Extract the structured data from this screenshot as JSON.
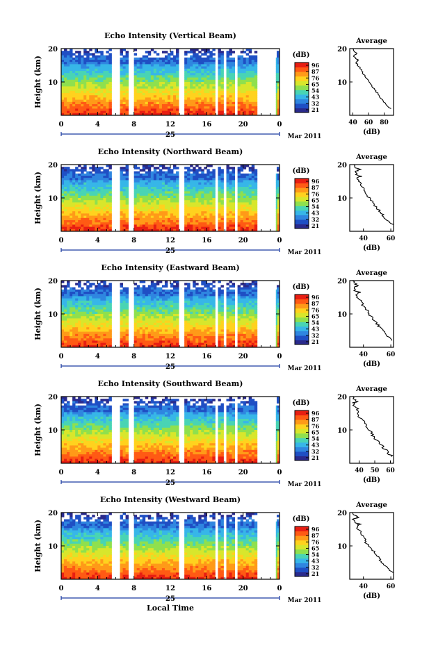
{
  "colorbar": {
    "unit": "(dB)",
    "ticks": [
      "96",
      "87",
      "76",
      "65",
      "54",
      "43",
      "32",
      "21"
    ],
    "colors": [
      "#2a2a8c",
      "#1f4fc4",
      "#2f86e0",
      "#37b6e8",
      "#49d4b4",
      "#8fe04e",
      "#d8e62c",
      "#ffd21e",
      "#ff9a18",
      "#ff5a14",
      "#e81e12"
    ]
  },
  "xaxis": {
    "ticks": [
      "0",
      "4",
      "8",
      "12",
      "16",
      "20",
      "0"
    ],
    "date_label": "25",
    "month_label": "Mar 2011",
    "xlabel": "Local Time"
  },
  "ylabel": "Height (km)",
  "chart_data": [
    {
      "type": "heatmap",
      "title": "Echo Intensity (Vertical Beam)",
      "y_ticks": [
        "20",
        "10"
      ],
      "avg_title": "Average",
      "avg_x_ticks": [
        "40",
        "60",
        "80"
      ],
      "avg_xlabel": "(dB)",
      "avg_xlim": [
        36,
        92
      ],
      "gaps_hours": [
        [
          5.6,
          6.6
        ],
        [
          7.3,
          7.9
        ],
        [
          12.9,
          13.5
        ],
        [
          16.8,
          17.1
        ],
        [
          17.9,
          18.2
        ],
        [
          19.1,
          19.3
        ],
        [
          21.6,
          22.3
        ],
        [
          23.4,
          23.5
        ]
      ],
      "average_profile": [
        [
          88,
          2
        ],
        [
          84,
          3
        ],
        [
          80,
          4
        ],
        [
          76,
          5
        ],
        [
          74,
          6
        ],
        [
          70,
          7
        ],
        [
          67,
          8
        ],
        [
          64,
          9
        ],
        [
          61,
          10
        ],
        [
          57,
          11
        ],
        [
          55,
          12
        ],
        [
          52,
          13
        ],
        [
          50,
          14
        ],
        [
          46,
          15
        ],
        [
          44,
          16
        ],
        [
          47,
          16.5
        ],
        [
          43,
          17
        ],
        [
          41,
          18
        ],
        [
          45,
          18.5
        ],
        [
          42,
          19
        ],
        [
          40,
          20
        ]
      ]
    },
    {
      "type": "heatmap",
      "title": "Echo Intensity (Northward Beam)",
      "y_ticks": [
        "20",
        "10"
      ],
      "avg_title": "Average",
      "avg_x_ticks": [
        "40",
        "60"
      ],
      "avg_xlabel": "(dB)",
      "avg_xlim": [
        30,
        62
      ],
      "gaps_hours": [
        [
          5.6,
          6.6
        ],
        [
          7.3,
          7.9
        ],
        [
          12.9,
          13.5
        ],
        [
          16.8,
          17.1
        ],
        [
          17.9,
          18.2
        ],
        [
          19.1,
          19.3
        ],
        [
          21.6,
          22.3
        ],
        [
          23.4,
          23.5
        ]
      ],
      "average_profile": [
        [
          61,
          2
        ],
        [
          58,
          3
        ],
        [
          56,
          4
        ],
        [
          54,
          5
        ],
        [
          52,
          6
        ],
        [
          50,
          7
        ],
        [
          48,
          8
        ],
        [
          46,
          9
        ],
        [
          44,
          10
        ],
        [
          43,
          11
        ],
        [
          41,
          12
        ],
        [
          40,
          13
        ],
        [
          38,
          14
        ],
        [
          37,
          15
        ],
        [
          36,
          16
        ],
        [
          38,
          16.5
        ],
        [
          35,
          17
        ],
        [
          34,
          18
        ],
        [
          37,
          18.5
        ],
        [
          35,
          19
        ],
        [
          33,
          20
        ]
      ]
    },
    {
      "type": "heatmap",
      "title": "Echo Intensity (Eastward Beam)",
      "y_ticks": [
        "20",
        "10"
      ],
      "avg_title": "Average",
      "avg_x_ticks": [
        "40",
        "60"
      ],
      "avg_xlabel": "(dB)",
      "avg_xlim": [
        30,
        62
      ],
      "gaps_hours": [
        [
          5.6,
          6.6
        ],
        [
          7.3,
          7.9
        ],
        [
          12.9,
          13.5
        ],
        [
          16.8,
          17.1
        ],
        [
          17.9,
          18.2
        ],
        [
          19.1,
          19.3
        ],
        [
          21.6,
          22.3
        ],
        [
          23.4,
          23.5
        ]
      ],
      "average_profile": [
        [
          61,
          2
        ],
        [
          58,
          3
        ],
        [
          56,
          4
        ],
        [
          54,
          5
        ],
        [
          52,
          6
        ],
        [
          50,
          7
        ],
        [
          48,
          8
        ],
        [
          46,
          9
        ],
        [
          44,
          10
        ],
        [
          43,
          11
        ],
        [
          41,
          12
        ],
        [
          39,
          13
        ],
        [
          38,
          14
        ],
        [
          36,
          15
        ],
        [
          35,
          16
        ],
        [
          37,
          16.5
        ],
        [
          34,
          17
        ],
        [
          33,
          18
        ],
        [
          36,
          18.5
        ],
        [
          34,
          19
        ],
        [
          32,
          20
        ]
      ]
    },
    {
      "type": "heatmap",
      "title": "Echo Intensity (Southward Beam)",
      "y_ticks": [
        "20",
        "10"
      ],
      "avg_title": "Average",
      "avg_x_ticks": [
        "40",
        "50",
        "60"
      ],
      "avg_xlabel": "(dB)",
      "avg_xlim": [
        34,
        62
      ],
      "gaps_hours": [
        [
          5.6,
          6.6
        ],
        [
          7.3,
          7.9
        ],
        [
          12.9,
          13.5
        ],
        [
          16.8,
          17.1
        ],
        [
          17.9,
          18.2
        ],
        [
          19.1,
          19.3
        ],
        [
          21.6,
          22.3
        ],
        [
          23.4,
          23.5
        ]
      ],
      "average_profile": [
        [
          61,
          2
        ],
        [
          59,
          3
        ],
        [
          57,
          4
        ],
        [
          55,
          5
        ],
        [
          53,
          6
        ],
        [
          51,
          7
        ],
        [
          49,
          8
        ],
        [
          48,
          9
        ],
        [
          46,
          10
        ],
        [
          45,
          11
        ],
        [
          43,
          12
        ],
        [
          42,
          13
        ],
        [
          40,
          14
        ],
        [
          39,
          15
        ],
        [
          38,
          16
        ],
        [
          40,
          16.5
        ],
        [
          37,
          17
        ],
        [
          36,
          18
        ],
        [
          38,
          18.5
        ],
        [
          37,
          19
        ],
        [
          36,
          20
        ]
      ]
    },
    {
      "type": "heatmap",
      "title": "Echo Intensity (Westward Beam)",
      "y_ticks": [
        "20",
        "10"
      ],
      "avg_title": "Average",
      "avg_x_ticks": [
        "40",
        "60"
      ],
      "avg_xlabel": "(dB)",
      "avg_xlim": [
        30,
        62
      ],
      "gaps_hours": [
        [
          5.6,
          6.6
        ],
        [
          7.3,
          7.9
        ],
        [
          12.9,
          13.5
        ],
        [
          16.8,
          17.1
        ],
        [
          17.9,
          18.2
        ],
        [
          19.1,
          19.3
        ],
        [
          21.6,
          22.3
        ],
        [
          23.4,
          23.5
        ]
      ],
      "average_profile": [
        [
          61,
          2
        ],
        [
          58,
          3
        ],
        [
          56,
          4
        ],
        [
          54,
          5
        ],
        [
          52,
          6
        ],
        [
          50,
          7
        ],
        [
          48,
          8
        ],
        [
          46,
          9
        ],
        [
          44,
          10
        ],
        [
          42,
          11
        ],
        [
          41,
          12
        ],
        [
          39,
          13
        ],
        [
          38,
          14
        ],
        [
          36,
          15
        ],
        [
          35,
          16
        ],
        [
          37,
          16.5
        ],
        [
          34,
          17
        ],
        [
          33,
          18
        ],
        [
          36,
          18.5
        ],
        [
          34,
          19
        ],
        [
          32,
          20
        ]
      ]
    }
  ]
}
